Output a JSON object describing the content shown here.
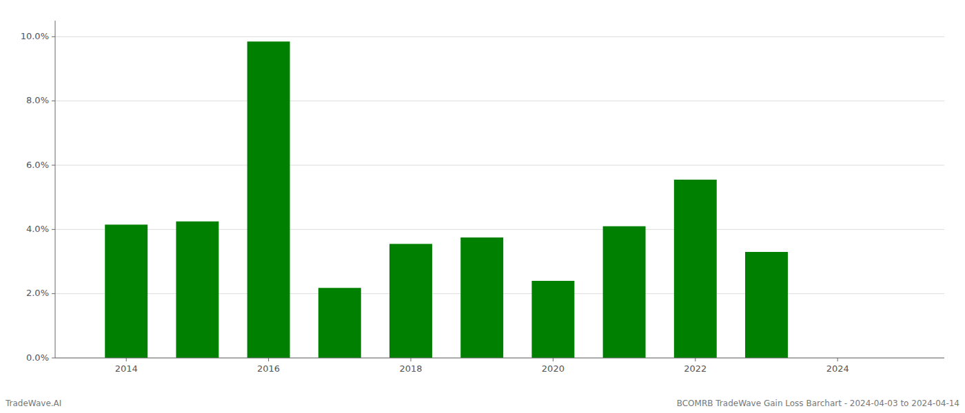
{
  "chart_data": {
    "type": "bar",
    "x": [
      2014,
      2015,
      2016,
      2017,
      2018,
      2019,
      2020,
      2021,
      2022,
      2023
    ],
    "values": [
      0.0415,
      0.0425,
      0.0985,
      0.0218,
      0.0355,
      0.0375,
      0.024,
      0.041,
      0.0555,
      0.033
    ],
    "color": "#008000",
    "xlim": [
      2013.0,
      2025.5
    ],
    "xticks": [
      2014,
      2016,
      2018,
      2020,
      2022,
      2024
    ],
    "ylim": [
      0.0,
      0.105
    ],
    "yticks": [
      {
        "value": 0.0,
        "label": "0.0%"
      },
      {
        "value": 0.02,
        "label": "2.0%"
      },
      {
        "value": 0.04,
        "label": "4.0%"
      },
      {
        "value": 0.06,
        "label": "6.0%"
      },
      {
        "value": 0.08,
        "label": "8.0%"
      },
      {
        "value": 0.1,
        "label": "10.0%"
      }
    ],
    "grid": true,
    "annotations": [
      "TradeWave.AI",
      "BCOMRB TradeWave Gain Loss Barchart - 2024-04-03 to 2024-04-14"
    ]
  }
}
